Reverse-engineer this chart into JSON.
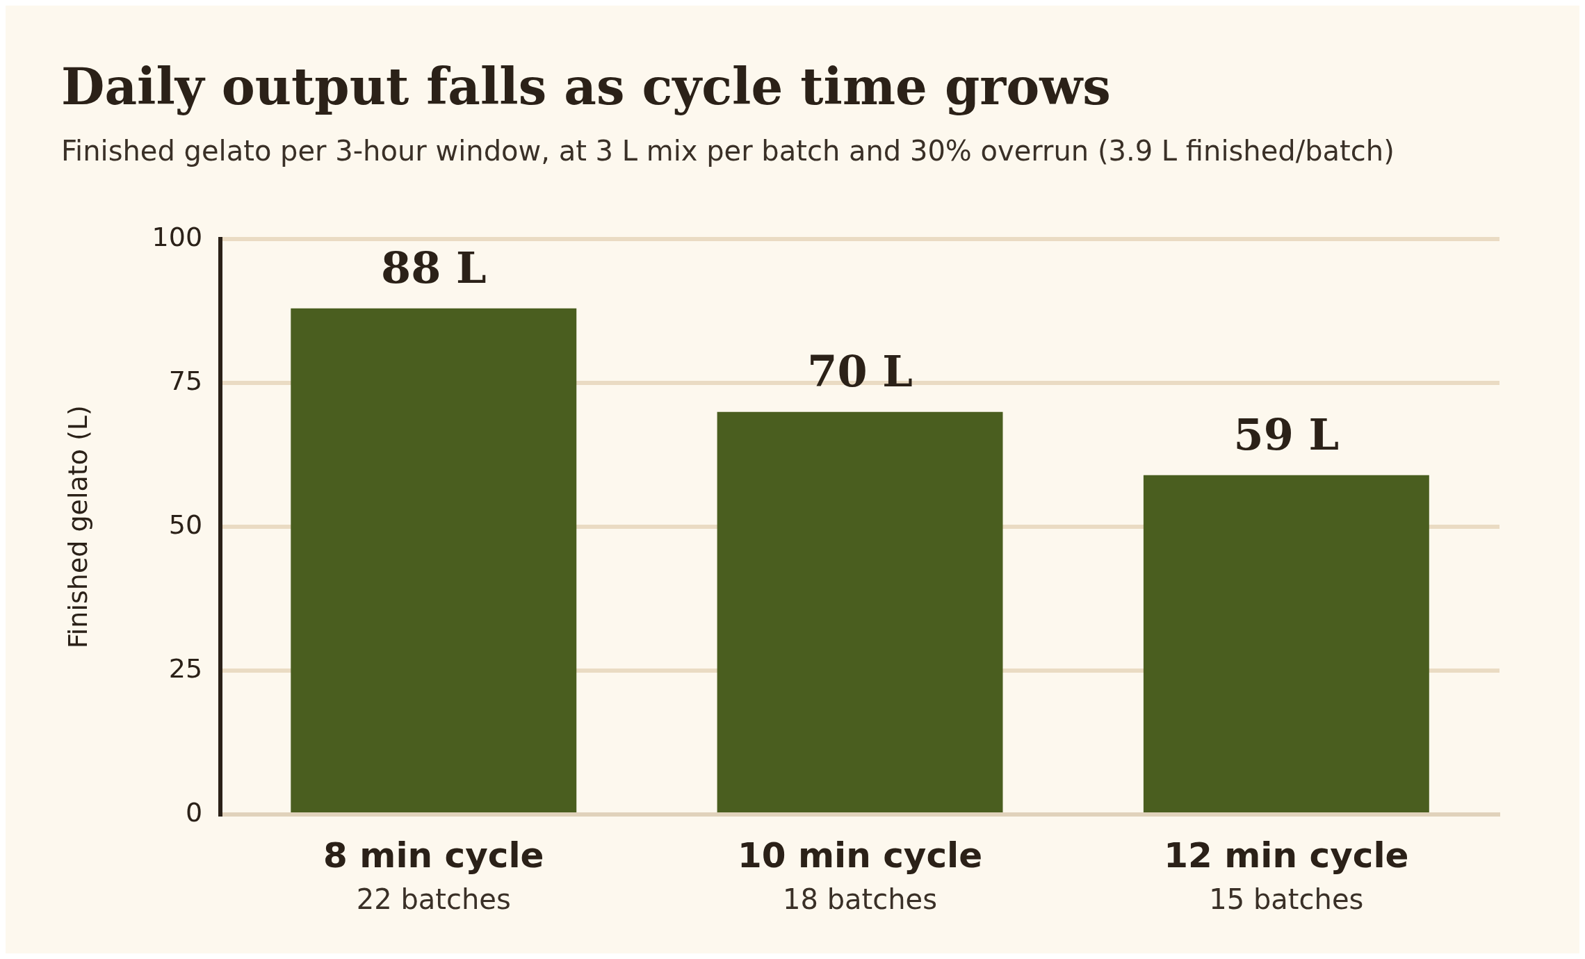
{
  "chart_data": {
    "type": "bar",
    "title": "Daily output falls as cycle time grows",
    "subtitle": "Finished gelato per 3-hour window, at 3 L mix per batch and 30% overrun (3.9 L finished/batch)",
    "ylabel": "Finished gelato (L)",
    "categories": [
      "8 min cycle\n22 batches",
      "10 min cycle\n18 batches",
      "12 min cycle\n15 batches"
    ],
    "values": [
      88,
      70,
      59
    ],
    "value_labels": [
      "88 L",
      "70 L",
      "59 L"
    ],
    "color": "#4a5e1f",
    "ylim": [
      0,
      100
    ],
    "yticks": [
      0,
      25,
      50,
      75,
      100
    ],
    "grid": "y",
    "legend": false
  }
}
